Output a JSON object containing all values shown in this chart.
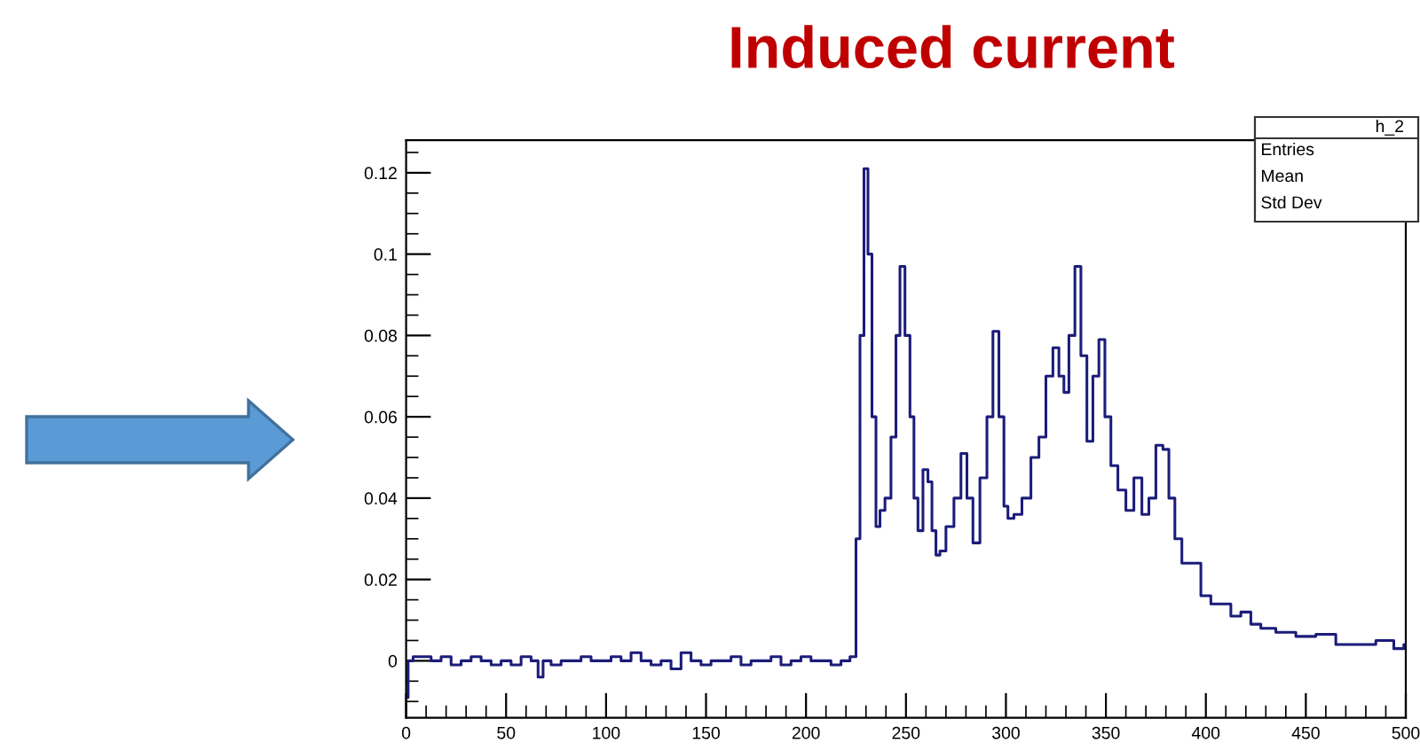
{
  "chart_data": {
    "type": "step",
    "title": "Induced current",
    "x": [
      0,
      2,
      5,
      10,
      15,
      20,
      25,
      30,
      35,
      40,
      45,
      50,
      55,
      60,
      65,
      67,
      70,
      75,
      80,
      85,
      90,
      95,
      100,
      105,
      110,
      115,
      120,
      125,
      130,
      135,
      140,
      145,
      150,
      155,
      160,
      165,
      170,
      175,
      180,
      185,
      190,
      195,
      200,
      205,
      210,
      215,
      220,
      224,
      226,
      228,
      230,
      232,
      234,
      236,
      238,
      241,
      244,
      246,
      248,
      251,
      253,
      255,
      257,
      260,
      262,
      264,
      266,
      268,
      272,
      276,
      279,
      282,
      285,
      289,
      292,
      295,
      298,
      300,
      302,
      306,
      310,
      315,
      318,
      322,
      325,
      328,
      330,
      333,
      336,
      339,
      342,
      345,
      348,
      351,
      354,
      358,
      362,
      366,
      370,
      373,
      377,
      380,
      383,
      386,
      390,
      395,
      400,
      405,
      410,
      415,
      420,
      425,
      430,
      440,
      450,
      460,
      470,
      480,
      490,
      498,
      500
    ],
    "series": [
      {
        "color": "#1c1c7a",
        "values": [
          -0.009,
          0,
          0.001,
          0.001,
          0,
          0.001,
          -0.001,
          0,
          0.001,
          0,
          -0.001,
          0,
          -0.001,
          0.001,
          0,
          -0.004,
          0,
          -0.001,
          0,
          0,
          0.001,
          0,
          0,
          0.001,
          0,
          0.002,
          0,
          -0.001,
          0,
          -0.002,
          0.002,
          0,
          -0.001,
          0,
          0,
          0.001,
          -0.001,
          0,
          0,
          0.001,
          -0.001,
          0,
          0.001,
          0,
          0,
          -0.001,
          0,
          0.001,
          0.03,
          0.08,
          0.121,
          0.1,
          0.06,
          0.033,
          0.037,
          0.04,
          0.055,
          0.08,
          0.097,
          0.08,
          0.06,
          0.04,
          0.032,
          0.047,
          0.044,
          0.032,
          0.026,
          0.027,
          0.033,
          0.04,
          0.051,
          0.04,
          0.029,
          0.045,
          0.06,
          0.081,
          0.06,
          0.038,
          0.035,
          0.036,
          0.04,
          0.05,
          0.055,
          0.07,
          0.077,
          0.07,
          0.066,
          0.08,
          0.097,
          0.075,
          0.054,
          0.07,
          0.079,
          0.06,
          0.048,
          0.042,
          0.037,
          0.045,
          0.036,
          0.04,
          0.053,
          0.052,
          0.04,
          0.03,
          0.024,
          0.024,
          0.016,
          0.014,
          0.014,
          0.011,
          0.012,
          0.009,
          0.008,
          0.007,
          0.006,
          0.0065,
          0.004,
          0.004,
          0.005,
          0.003,
          0.004
        ]
      }
    ],
    "xlim": [
      0,
      500
    ],
    "xticks": [
      0,
      50,
      100,
      150,
      200,
      250,
      300,
      350,
      400,
      450,
      500
    ],
    "ylim": [
      -0.014,
      0.128
    ],
    "yticks": [
      0,
      0.02,
      0.04,
      0.06,
      0.08,
      {
        "value": 0.1,
        "label": "0.1"
      },
      0.12
    ],
    "grid": false,
    "annotations": [
      "h_2",
      "Entries",
      "Mean",
      "Std Dev"
    ]
  }
}
